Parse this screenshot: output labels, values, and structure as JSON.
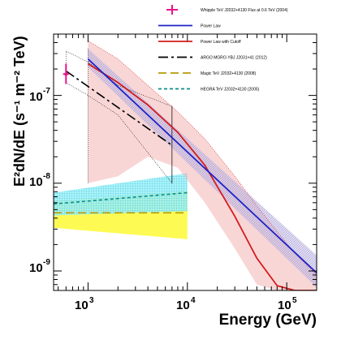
{
  "chart_data": {
    "type": "line",
    "xlabel": "Energy (GeV)",
    "ylabel": "E²dN/dE (s⁻¹ m⁻² TeV)",
    "x_scale": "log",
    "y_scale": "log",
    "xlim": [
      450,
      200000
    ],
    "ylim": [
      6e-10,
      5e-07
    ],
    "x_ticks": [
      {
        "value": 1000,
        "label": "10",
        "exp": "3"
      },
      {
        "value": 10000,
        "label": "10",
        "exp": "4"
      },
      {
        "value": 100000,
        "label": "10",
        "exp": "5"
      }
    ],
    "y_ticks": [
      {
        "value": 1e-09,
        "label": "10",
        "exp": "-9"
      },
      {
        "value": 1e-08,
        "label": "10",
        "exp": "-8"
      },
      {
        "value": 1e-07,
        "label": "10",
        "exp": "-7"
      }
    ],
    "legend_position": "top-right",
    "series": [
      {
        "name": "Whipple TeV J2032+4130 Flux at 0.6 TeV (2004)",
        "kind": "point",
        "color": "#e8148a",
        "x": [
          600
        ],
        "y": [
          1.75e-07
        ],
        "xerr": [
          [
            560,
            640
          ]
        ],
        "yerr": [
          [
            1.35e-07,
            2.3e-07
          ]
        ]
      },
      {
        "name": "Power Law",
        "kind": "line",
        "color": "#1f24c8",
        "band_color": "#7d6fc4",
        "x": [
          1000,
          200000
        ],
        "y": [
          2.6e-07,
          9.5e-10
        ],
        "band": {
          "x": [
            1000,
            200000
          ],
          "low": [
            2.1e-07,
            6.5e-10
          ],
          "high": [
            3.4e-07,
            1.5e-09
          ]
        }
      },
      {
        "name": "Power Law with Cutoff",
        "kind": "line",
        "color": "#d41c1c",
        "band_color": "#f4b4b4",
        "x": [
          1000,
          2000,
          4000,
          8000,
          15000,
          30000,
          50000,
          80000,
          120000,
          200000
        ],
        "y": [
          2.3e-07,
          1.4e-07,
          7.8e-08,
          3.8e-08,
          1.6e-08,
          4.2e-09,
          1.4e-09,
          6.8e-10,
          6e-10,
          6e-10
        ],
        "band": {
          "x": [
            1000,
            2000,
            4000,
            8000,
            15000,
            30000,
            50000,
            80000,
            120000,
            200000
          ],
          "low": [
            1e-08,
            1.2e-08,
            2e-08,
            1.5e-08,
            6e-09,
            1.8e-09,
            7e-10,
            6e-10,
            6e-10,
            6e-10
          ],
          "high": [
            4.2e-07,
            2.6e-07,
            1.3e-07,
            6.5e-08,
            3.2e-08,
            1.2e-08,
            5.5e-09,
            2.8e-09,
            1.6e-09,
            9e-10
          ]
        }
      },
      {
        "name": "ARGO MGRO-YBJ J2031+41 (2012)",
        "kind": "line",
        "color": "#000000",
        "dash": "12 4 3 4",
        "x": [
          600,
          7000
        ],
        "y": [
          1.9e-07,
          2.7e-08
        ],
        "band": {
          "x": [
            600,
            1000,
            2000,
            7000
          ],
          "low": [
            1.4e-07,
            1e-07,
            6e-08,
            1e-08
          ],
          "high": [
            3.2e-07,
            2.4e-07,
            1.3e-07,
            7.5e-08
          ]
        }
      },
      {
        "name": "Magic TeV J2032+4130 (2008)",
        "kind": "line",
        "color": "#b49b08",
        "band_color": "#fdfb4a",
        "dash": "10 5",
        "x": [
          450,
          10000
        ],
        "y": [
          4.6e-09,
          4.6e-09
        ],
        "band": {
          "x": [
            450,
            10000
          ],
          "low": [
            3.1e-09,
            2.3e-09
          ],
          "high": [
            6.2e-09,
            8.2e-09
          ]
        }
      },
      {
        "name": "HEGRA TeV J2032+4130 (2005)",
        "kind": "line",
        "color": "#0c8c8c",
        "band_color": "#9ef4f8",
        "dash": "4 3",
        "x": [
          450,
          10000
        ],
        "y": [
          5.8e-09,
          7.8e-09
        ],
        "band": {
          "x": [
            450,
            10000
          ],
          "low": [
            4.3e-09,
            4.8e-09
          ],
          "high": [
            7.8e-09,
            1.3e-08
          ]
        }
      }
    ]
  }
}
